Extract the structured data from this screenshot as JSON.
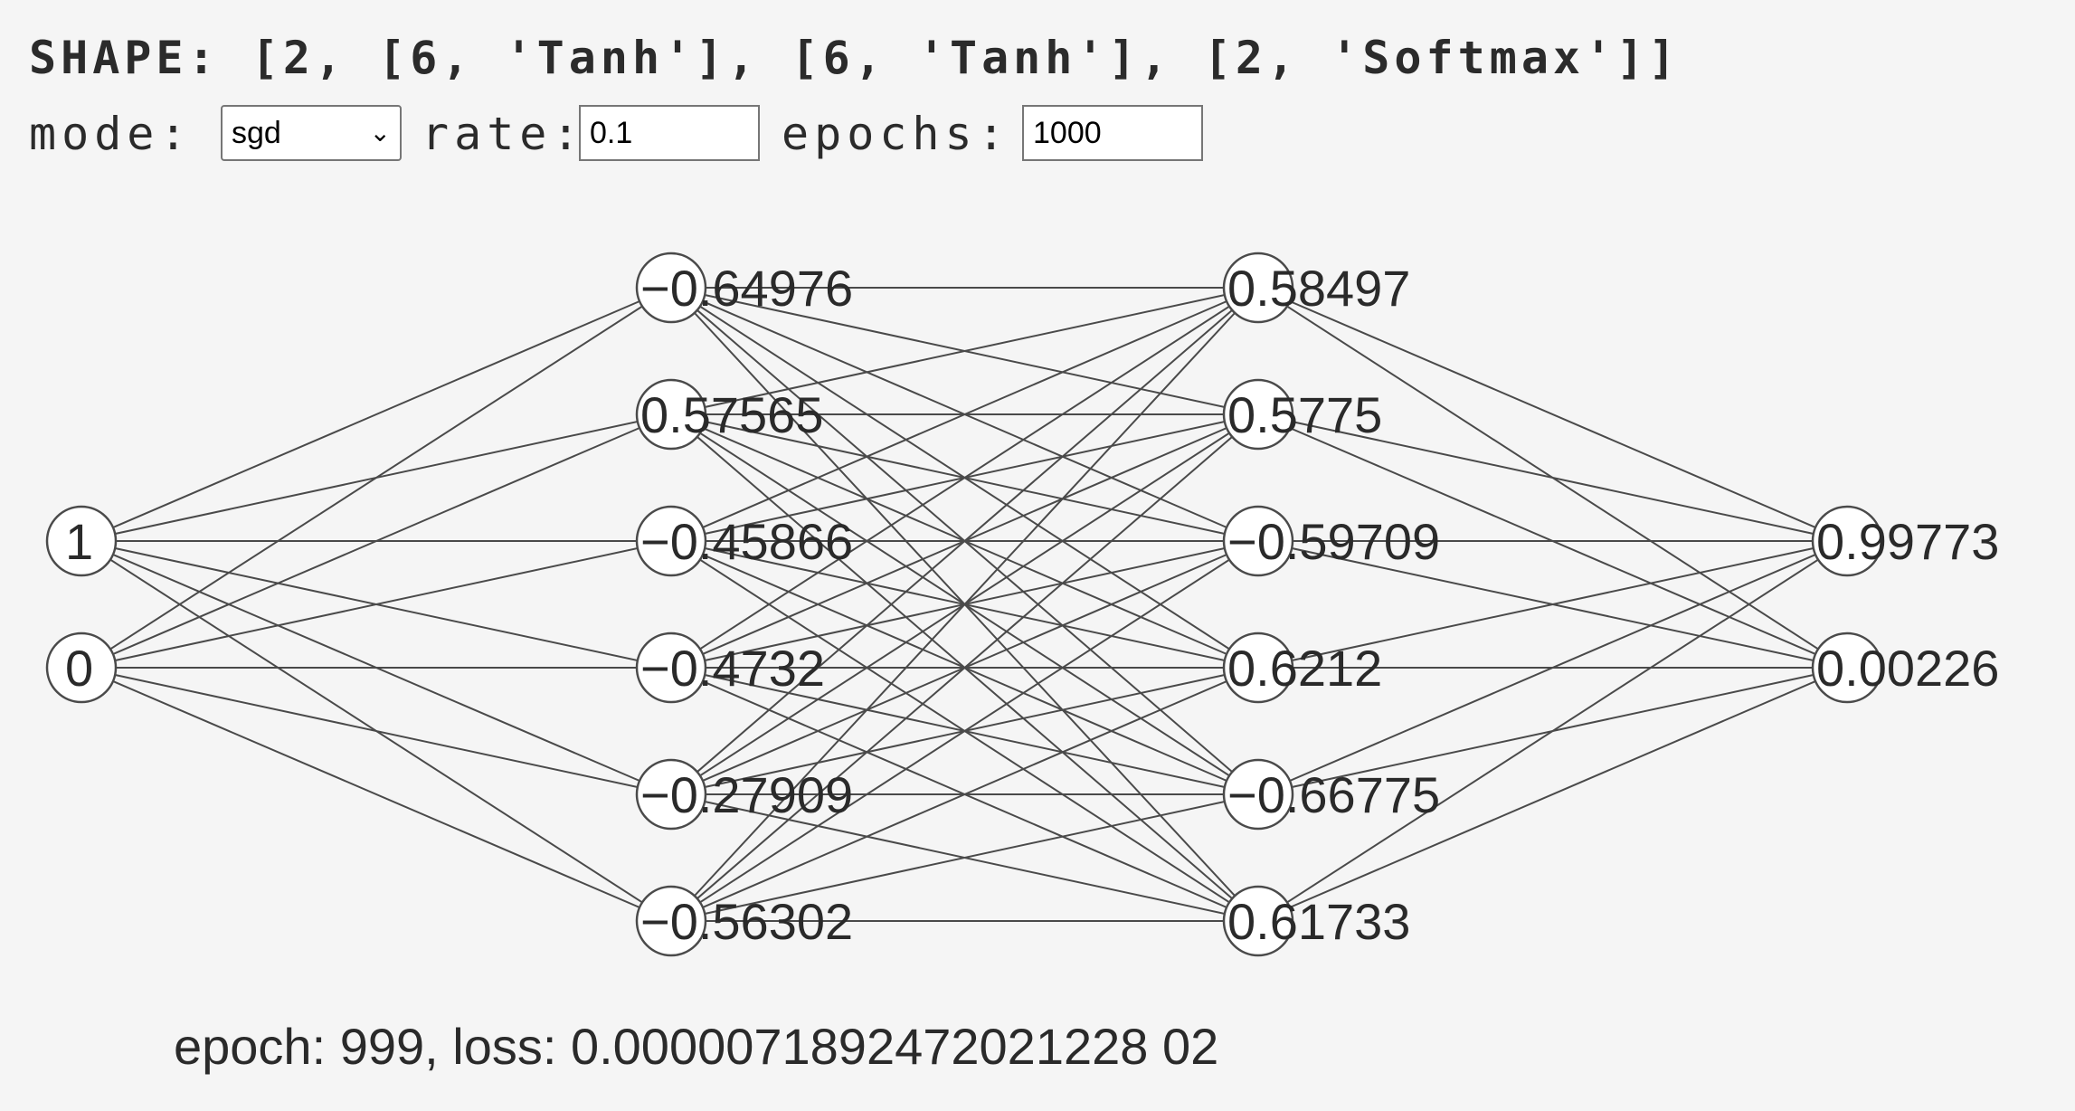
{
  "header": {
    "shape_text": "SHAPE: [2, [6, 'Tanh'], [6, 'Tanh'], [2, 'Softmax']]"
  },
  "controls": {
    "mode_label": "mode:",
    "mode_value": "sgd",
    "rate_label": "rate:",
    "rate_value": "0.1",
    "epochs_label": "epochs:",
    "epochs_value": "1000"
  },
  "network": {
    "layers": [
      [
        "1",
        "0"
      ],
      [
        "−0.64976",
        "0.57565",
        "−0.45866",
        "−0.4732",
        "−0.27909",
        "−0.56302"
      ],
      [
        "0.58497",
        "0.5775",
        "−0.59709",
        "0.6212",
        "−0.66775",
        "0.61733"
      ],
      [
        "0.99773",
        "0.00226"
      ]
    ]
  },
  "status": {
    "text": "epoch: 999, loss: 0.0000071892472021228 02"
  },
  "colors": {
    "background": "#f5f5f5",
    "edge": "#4a4a4a",
    "node_fill": "#ffffff"
  }
}
